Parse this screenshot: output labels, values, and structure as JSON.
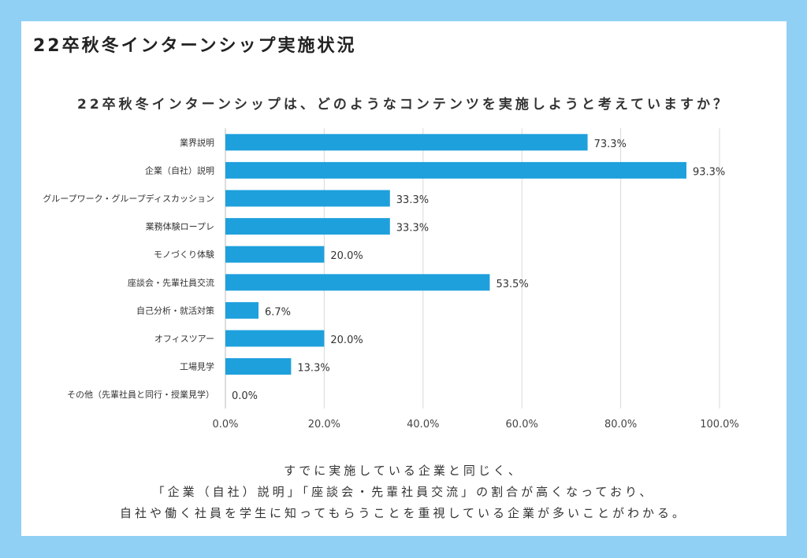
{
  "page": {
    "title": "22卒秋冬インターンシップ実施状況"
  },
  "colors": {
    "background": "#8fd0f4",
    "bar": "#1ea0dc"
  },
  "chart_data": {
    "type": "bar",
    "orientation": "horizontal",
    "title": "22卒秋冬インターンシップは、どのようなコンテンツを実施しようと考えていますか？",
    "categories": [
      "業界説明",
      "企業（自社）説明",
      "グループワーク・グループディスカッション",
      "業務体験ロープレ",
      "モノづくり体験",
      "座談会・先輩社員交流",
      "自己分析・就活対策",
      "オフィスツアー",
      "工場見学",
      "その他（先輩社員と同行・授業見学）"
    ],
    "values": [
      73.3,
      93.3,
      33.3,
      33.3,
      20.0,
      53.5,
      6.7,
      20.0,
      13.3,
      0.0
    ],
    "value_labels": [
      "73.3%",
      "93.3%",
      "33.3%",
      "33.3%",
      "20.0%",
      "53.5%",
      "6.7%",
      "20.0%",
      "13.3%",
      "0.0%"
    ],
    "xlim": [
      0,
      100
    ],
    "x_ticks": [
      "0.0%",
      "20.0%",
      "40.0%",
      "60.0%",
      "80.0%",
      "100.0%"
    ],
    "grid": true,
    "legend": "none"
  },
  "caption": {
    "lines": [
      "すでに実施している企業と同じく、",
      "「企業（自社）説明」「座談会・先輩社員交流」の割合が高くなっており、",
      "自社や働く社員を学生に知ってもらうことを重視している企業が多いことがわかる。"
    ]
  }
}
